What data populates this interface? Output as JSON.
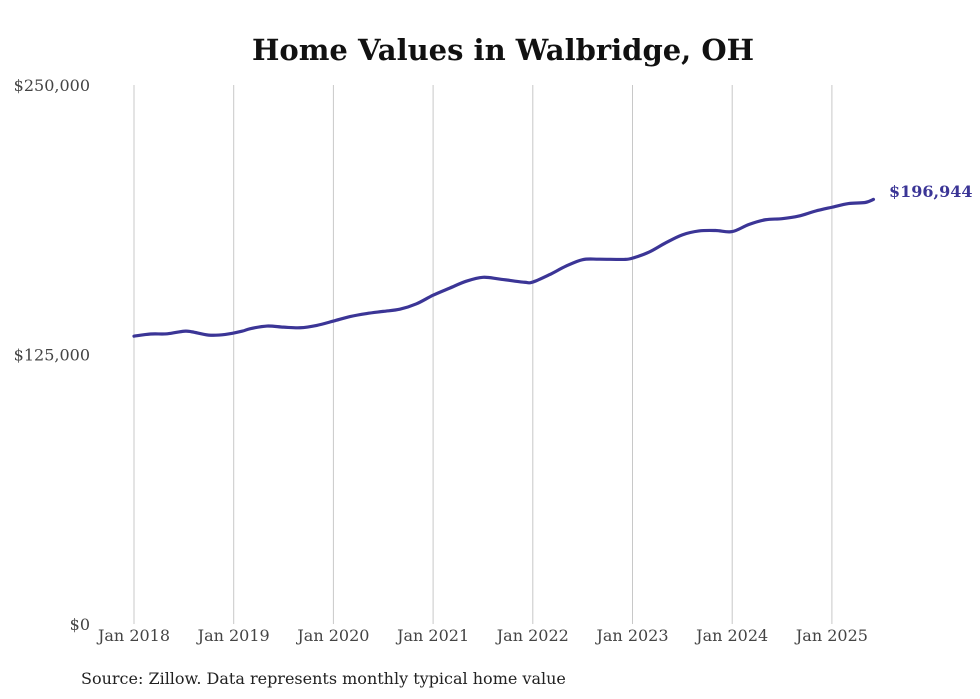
{
  "colors": {
    "line": "#3b3596",
    "grid": "#c8c8c8",
    "text": "#444444"
  },
  "chart_data": {
    "type": "line",
    "title": "Home Values in Walbridge, OH",
    "xlabel": "",
    "ylabel": "",
    "ylim": [
      0,
      250000
    ],
    "xlim": [
      "2018-01",
      "2025-06"
    ],
    "y_ticks": [
      {
        "value": 0,
        "label": "$0"
      },
      {
        "value": 125000,
        "label": "$125,000"
      },
      {
        "value": 250000,
        "label": "$250,000"
      }
    ],
    "x_ticks": [
      {
        "date": "2018-01",
        "label": "Jan 2018"
      },
      {
        "date": "2019-01",
        "label": "Jan 2019"
      },
      {
        "date": "2020-01",
        "label": "Jan 2020"
      },
      {
        "date": "2021-01",
        "label": "Jan 2021"
      },
      {
        "date": "2022-01",
        "label": "Jan 2022"
      },
      {
        "date": "2023-01",
        "label": "Jan 2023"
      },
      {
        "date": "2024-01",
        "label": "Jan 2024"
      },
      {
        "date": "2025-01",
        "label": "Jan 2025"
      }
    ],
    "grid": "vertical",
    "series": [
      {
        "x": [
          "2018-01",
          "2018-03",
          "2018-05",
          "2018-07",
          "2018-08",
          "2018-10",
          "2018-12",
          "2019-02",
          "2019-03",
          "2019-05",
          "2019-07",
          "2019-09",
          "2019-11",
          "2020-01",
          "2020-03",
          "2020-05",
          "2020-07",
          "2020-09",
          "2020-11",
          "2021-01",
          "2021-03",
          "2021-05",
          "2021-07",
          "2021-09",
          "2021-12",
          "2022-01",
          "2022-03",
          "2022-05",
          "2022-07",
          "2022-09",
          "2022-12",
          "2023-01",
          "2023-03",
          "2023-05",
          "2023-07",
          "2023-09",
          "2023-11",
          "2024-01",
          "2024-03",
          "2024-05",
          "2024-07",
          "2024-09",
          "2024-11",
          "2025-01",
          "2025-03",
          "2025-05",
          "2025-06"
        ],
        "values": [
          133500,
          134500,
          134600,
          135800,
          135500,
          134000,
          134300,
          135800,
          137000,
          138200,
          137700,
          137400,
          138500,
          140500,
          142600,
          144000,
          145000,
          146000,
          148500,
          152500,
          155800,
          159000,
          160800,
          160000,
          158500,
          158600,
          162000,
          166000,
          169000,
          169200,
          169100,
          169700,
          172500,
          176800,
          180500,
          182300,
          182500,
          182000,
          185300,
          187500,
          188000,
          189200,
          191500,
          193300,
          195000,
          195500,
          196944
        ]
      }
    ],
    "end_label": "$196,944",
    "source": "Source: Zillow. Data represents monthly typical home value"
  }
}
